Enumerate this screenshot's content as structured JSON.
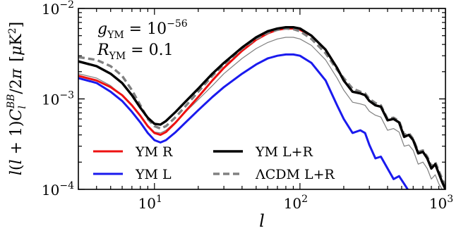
{
  "chart_data": {
    "type": "line",
    "xlabel": "l",
    "ylabel": "l(l + 1)C_l^BB/2π [μK²]",
    "x_scale": "log",
    "y_scale": "log",
    "xlim": [
      3,
      1000
    ],
    "ylim": [
      0.0001,
      0.01
    ],
    "grid": false,
    "legend_position": "bottom-left",
    "x_ticks": [
      {
        "value": 10,
        "base": "10",
        "exp": "1"
      },
      {
        "value": 100,
        "base": "10",
        "exp": "2"
      },
      {
        "value": 1000,
        "base": "10",
        "exp": "3"
      }
    ],
    "y_ticks": [
      {
        "value": 0.0001,
        "base": "10",
        "exp": "−4"
      },
      {
        "value": 0.001,
        "base": "10",
        "exp": "−3"
      },
      {
        "value": 0.01,
        "base": "10",
        "exp": "−2"
      }
    ],
    "annotations": [
      {
        "symbol": "g",
        "sub": "YM",
        "eq": " = 10",
        "sup": "−56"
      },
      {
        "symbol": "R",
        "sub": "YM",
        "eq": " = 0.1",
        "sup": ""
      }
    ],
    "series": [
      {
        "name": "YM R",
        "color": "#ee1111",
        "dash": "solid",
        "width": 3,
        "x": [
          3,
          4,
          5,
          6,
          7,
          8,
          9,
          10,
          11,
          12,
          14,
          16,
          20,
          25,
          30,
          40,
          50,
          60,
          70,
          80,
          90,
          100,
          120,
          150,
          180,
          200,
          230,
          260,
          280,
          300,
          330,
          360,
          400,
          440,
          480,
          520,
          560,
          600,
          650,
          700,
          750,
          800,
          850,
          900,
          950,
          1000
        ],
        "y": [
          0.0018,
          0.0016,
          0.00135,
          0.0011,
          0.00085,
          0.00065,
          0.0005,
          0.00042,
          0.0004,
          0.00043,
          0.00055,
          0.0007,
          0.00105,
          0.0016,
          0.0022,
          0.0034,
          0.0045,
          0.0053,
          0.0058,
          0.006,
          0.006,
          0.0058,
          0.005,
          0.0035,
          0.0022,
          0.0016,
          0.0012,
          0.00115,
          0.0011,
          0.00095,
          0.00085,
          0.00082,
          0.00058,
          0.0006,
          0.00055,
          0.00038,
          0.0004,
          0.00035,
          0.00025,
          0.00026,
          0.00022,
          0.00017,
          0.00019,
          0.00015,
          0.00012,
          0.0001
        ]
      },
      {
        "name": "YM L",
        "color": "#1a1aee",
        "dash": "solid",
        "width": 3,
        "x": [
          3,
          4,
          5,
          6,
          7,
          8,
          9,
          10,
          11,
          12,
          14,
          16,
          20,
          25,
          30,
          40,
          50,
          60,
          70,
          80,
          90,
          100,
          120,
          150,
          180,
          200,
          230,
          260,
          280,
          300,
          330,
          360,
          400,
          440,
          480,
          520,
          550
        ],
        "y": [
          0.0017,
          0.0015,
          0.0012,
          0.00095,
          0.00072,
          0.00055,
          0.00042,
          0.00035,
          0.00033,
          0.00035,
          0.00043,
          0.00053,
          0.00075,
          0.00105,
          0.00135,
          0.0019,
          0.0024,
          0.0028,
          0.003,
          0.0031,
          0.0031,
          0.003,
          0.0025,
          0.0016,
          0.00085,
          0.0006,
          0.00042,
          0.00045,
          0.00042,
          0.00031,
          0.00022,
          0.00023,
          0.00017,
          0.00013,
          0.00014,
          0.000115,
          0.0001
        ]
      },
      {
        "name": "YM L+R",
        "color": "#000000",
        "dash": "solid",
        "width": 3.4,
        "x": [
          3,
          4,
          5,
          6,
          7,
          8,
          9,
          10,
          11,
          12,
          14,
          16,
          20,
          25,
          30,
          40,
          50,
          60,
          70,
          80,
          90,
          100,
          120,
          150,
          180,
          200,
          230,
          260,
          280,
          300,
          330,
          360,
          400,
          440,
          480,
          520,
          560,
          600,
          650,
          700,
          750,
          800,
          850,
          900,
          950,
          1000
        ],
        "y": [
          0.0026,
          0.0023,
          0.0019,
          0.0015,
          0.0011,
          0.0008,
          0.00062,
          0.00053,
          0.00052,
          0.00057,
          0.00072,
          0.0009,
          0.0013,
          0.0019,
          0.0025,
          0.0037,
          0.0048,
          0.0056,
          0.006,
          0.0062,
          0.0062,
          0.006,
          0.005,
          0.0035,
          0.0022,
          0.0016,
          0.0012,
          0.00115,
          0.0011,
          0.00095,
          0.00085,
          0.00082,
          0.00058,
          0.0006,
          0.00055,
          0.00038,
          0.0004,
          0.00035,
          0.00025,
          0.00026,
          0.00022,
          0.00017,
          0.00019,
          0.00015,
          0.00012,
          0.0001
        ]
      },
      {
        "name": "ΛCDM L+R",
        "color": "#808080",
        "dash": "dashed",
        "width": 3.4,
        "x": [
          3,
          4,
          5,
          6,
          7,
          8,
          9,
          10,
          11,
          12,
          14,
          16,
          20,
          25,
          30,
          40,
          50,
          60,
          70,
          80,
          90,
          100,
          120,
          150,
          180,
          200,
          230,
          260,
          280,
          300,
          330,
          360,
          400,
          440,
          480,
          520,
          560,
          600,
          650,
          700,
          750,
          800,
          850,
          900,
          950,
          1000
        ],
        "y": [
          0.0029,
          0.0027,
          0.0023,
          0.0018,
          0.00125,
          0.00085,
          0.0006,
          0.0005,
          0.00047,
          0.0005,
          0.00063,
          0.0008,
          0.0012,
          0.0018,
          0.0024,
          0.0036,
          0.0046,
          0.0054,
          0.0058,
          0.006,
          0.0059,
          0.0056,
          0.0046,
          0.0032,
          0.0021,
          0.0017,
          0.0013,
          0.0012,
          0.00115,
          0.001,
          0.0009,
          0.00085,
          0.0006,
          0.00062,
          0.00057,
          0.0004,
          0.00042,
          0.00036,
          0.00026,
          0.00027,
          0.00023,
          0.00018,
          0.0002,
          0.00016,
          0.00013,
          0.00011
        ]
      },
      {
        "name": "",
        "color": "#7f7f7f",
        "dash": "solid",
        "width": 1.2,
        "x": [
          3,
          4,
          5,
          6,
          7,
          8,
          9,
          10,
          11,
          12,
          14,
          16,
          20,
          25,
          30,
          40,
          50,
          60,
          70,
          80,
          90,
          100,
          120,
          150,
          180,
          200,
          230,
          260,
          280,
          300,
          330,
          360,
          400,
          440,
          480,
          520,
          560,
          600,
          650,
          700,
          750,
          800,
          850,
          900,
          950,
          1000
        ],
        "y": [
          0.0019,
          0.0017,
          0.0014,
          0.0011,
          0.00085,
          0.00064,
          0.0005,
          0.00043,
          0.00042,
          0.00045,
          0.00056,
          0.00069,
          0.00098,
          0.0014,
          0.0019,
          0.0028,
          0.0036,
          0.0042,
          0.0046,
          0.0048,
          0.0048,
          0.0046,
          0.0039,
          0.0027,
          0.0017,
          0.00125,
          0.00092,
          0.00088,
          0.00085,
          0.00073,
          0.00066,
          0.00063,
          0.00045,
          0.00047,
          0.00043,
          0.0003,
          0.00031,
          0.00027,
          0.00019,
          0.0002,
          0.00017,
          0.00013,
          0.000145,
          0.000115,
          0.0001,
          9e-05
        ]
      }
    ],
    "legend": [
      {
        "label": "YM R",
        "series": 0,
        "row": 0,
        "col": 0
      },
      {
        "label": "YM L+R",
        "series": 2,
        "row": 0,
        "col": 1
      },
      {
        "label": "YM L",
        "series": 1,
        "row": 1,
        "col": 0
      },
      {
        "label": "ΛCDM L+R",
        "series": 3,
        "row": 1,
        "col": 1
      }
    ]
  }
}
